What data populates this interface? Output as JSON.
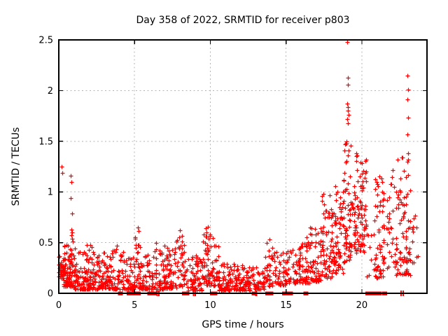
{
  "page_title": "Day 358 of 2022, SRMTID for receiver p803",
  "colors": {
    "marker": "#ff0000",
    "grid": "#b4b4b4",
    "border": "#000000",
    "background": "#ffffff",
    "text": "#000000"
  },
  "chart_data": {
    "type": "scatter",
    "title": "Day 358 of 2022, SRMTID for receiver p803",
    "xlabel": "GPS time / hours",
    "ylabel": "SRMTID / TECUs",
    "xlim": [
      0,
      24.3
    ],
    "ylim": [
      0,
      2.5
    ],
    "xticks": [
      0,
      5,
      10,
      15,
      20
    ],
    "yticks": [
      0,
      0.5,
      1,
      1.5,
      2,
      2.5
    ],
    "grid": true,
    "legend": "none",
    "marker": "plus",
    "marker_color": "#ff0000",
    "seed": 2022358,
    "point_bands_format": [
      "x_start",
      "x_end",
      "y_min",
      "y_max",
      "num_points",
      "low_bias"
    ],
    "point_bands": [
      [
        0.0,
        0.35,
        0.15,
        0.38,
        28,
        1.4
      ],
      [
        0.05,
        0.4,
        0.17,
        0.3,
        16,
        1.2
      ],
      [
        0.3,
        0.75,
        0.07,
        0.48,
        55,
        1.8
      ],
      [
        0.7,
        1.05,
        0.07,
        0.45,
        38,
        1.8
      ],
      [
        1.0,
        2.6,
        0.04,
        0.42,
        130,
        2.2
      ],
      [
        1.75,
        2.35,
        0.33,
        0.5,
        9,
        1.2
      ],
      [
        2.6,
        3.6,
        0.05,
        0.44,
        80,
        2.2
      ],
      [
        3.6,
        4.35,
        0.04,
        0.48,
        50,
        2.0
      ],
      [
        4.35,
        5.0,
        0.04,
        0.35,
        50,
        2.0
      ],
      [
        5.0,
        5.45,
        0.05,
        0.66,
        38,
        2.2
      ],
      [
        5.45,
        6.2,
        0.04,
        0.38,
        50,
        2.0
      ],
      [
        6.2,
        7.0,
        0.04,
        0.5,
        60,
        2.2
      ],
      [
        7.0,
        7.8,
        0.05,
        0.55,
        60,
        2.2
      ],
      [
        7.8,
        8.3,
        0.07,
        0.6,
        38,
        1.8
      ],
      [
        8.3,
        9.45,
        0.03,
        0.38,
        70,
        2.0
      ],
      [
        9.45,
        10.05,
        0.08,
        0.66,
        52,
        1.9
      ],
      [
        10.05,
        10.55,
        0.07,
        0.55,
        32,
        2.0
      ],
      [
        10.5,
        11.6,
        0.03,
        0.3,
        80,
        2.0
      ],
      [
        11.6,
        12.7,
        0.03,
        0.28,
        85,
        2.0
      ],
      [
        12.7,
        13.6,
        0.04,
        0.26,
        48,
        1.8
      ],
      [
        13.6,
        14.15,
        0.07,
        0.56,
        32,
        1.5
      ],
      [
        14.15,
        15.0,
        0.08,
        0.42,
        45,
        1.8
      ],
      [
        15.0,
        15.9,
        0.1,
        0.46,
        50,
        1.6
      ],
      [
        15.9,
        16.6,
        0.1,
        0.56,
        55,
        1.6
      ],
      [
        16.6,
        17.3,
        0.12,
        0.66,
        60,
        1.6
      ],
      [
        17.3,
        18.1,
        0.15,
        0.85,
        65,
        1.6
      ],
      [
        17.35,
        18.05,
        0.78,
        1.05,
        7,
        1.0
      ],
      [
        18.1,
        18.8,
        0.2,
        0.97,
        60,
        1.5
      ],
      [
        18.2,
        18.75,
        0.9,
        1.2,
        6,
        1.0
      ],
      [
        18.8,
        19.35,
        0.3,
        1.5,
        60,
        1.3
      ],
      [
        19.35,
        20.3,
        0.4,
        1.42,
        100,
        1.2
      ],
      [
        20.3,
        20.85,
        0.15,
        0.62,
        10,
        1.5
      ],
      [
        20.85,
        21.45,
        0.15,
        1.2,
        60,
        1.7
      ],
      [
        21.45,
        22.25,
        0.25,
        0.95,
        26,
        1.4
      ],
      [
        21.8,
        22.15,
        1.0,
        1.26,
        5,
        1.0
      ],
      [
        22.25,
        23.2,
        0.18,
        1.38,
        85,
        1.6
      ],
      [
        23.15,
        23.7,
        0.3,
        0.92,
        13,
        1.4
      ]
    ],
    "outlier_points": [
      [
        0.18,
        1.25
      ],
      [
        0.23,
        1.19
      ],
      [
        0.78,
        1.16
      ],
      [
        0.84,
        1.1
      ],
      [
        0.8,
        0.94
      ],
      [
        0.86,
        0.79
      ],
      [
        0.82,
        0.63
      ],
      [
        0.88,
        0.6
      ],
      [
        0.85,
        0.57
      ],
      [
        0.9,
        0.54
      ],
      [
        0.93,
        0.51
      ],
      [
        5.2,
        0.65
      ],
      [
        8.0,
        0.62
      ],
      [
        9.7,
        0.64
      ],
      [
        9.75,
        0.6
      ],
      [
        19.05,
        2.48
      ],
      [
        19.1,
        2.13
      ],
      [
        19.07,
        2.06
      ],
      [
        19.04,
        1.87
      ],
      [
        19.1,
        1.84
      ],
      [
        19.06,
        1.8
      ],
      [
        19.12,
        1.76
      ],
      [
        19.05,
        1.72
      ],
      [
        19.09,
        1.68
      ],
      [
        19.0,
        1.5
      ],
      [
        19.14,
        1.41
      ],
      [
        23.0,
        2.15
      ],
      [
        23.05,
        2.01
      ],
      [
        23.0,
        1.91
      ],
      [
        23.04,
        1.73
      ],
      [
        23.0,
        1.57
      ],
      [
        23.07,
        1.38
      ],
      [
        23.02,
        1.3
      ],
      [
        23.06,
        1.17
      ]
    ],
    "zero_line_squares_hours": [
      4.07,
      4.65,
      4.8,
      4.95,
      5.1,
      5.25,
      6.0,
      6.15,
      6.35,
      8.3,
      8.45,
      10.15,
      10.3,
      12.9,
      13.8,
      14.0,
      14.9,
      15.05,
      15.3,
      16.3,
      20.4,
      20.55,
      20.65,
      20.75,
      20.85,
      20.95,
      21.05,
      21.15,
      21.5
    ],
    "zero_line_thin_marks_hours": [
      6.5,
      6.6,
      8.9,
      9.0,
      13.0,
      13.05,
      22.6,
      22.72
    ]
  }
}
